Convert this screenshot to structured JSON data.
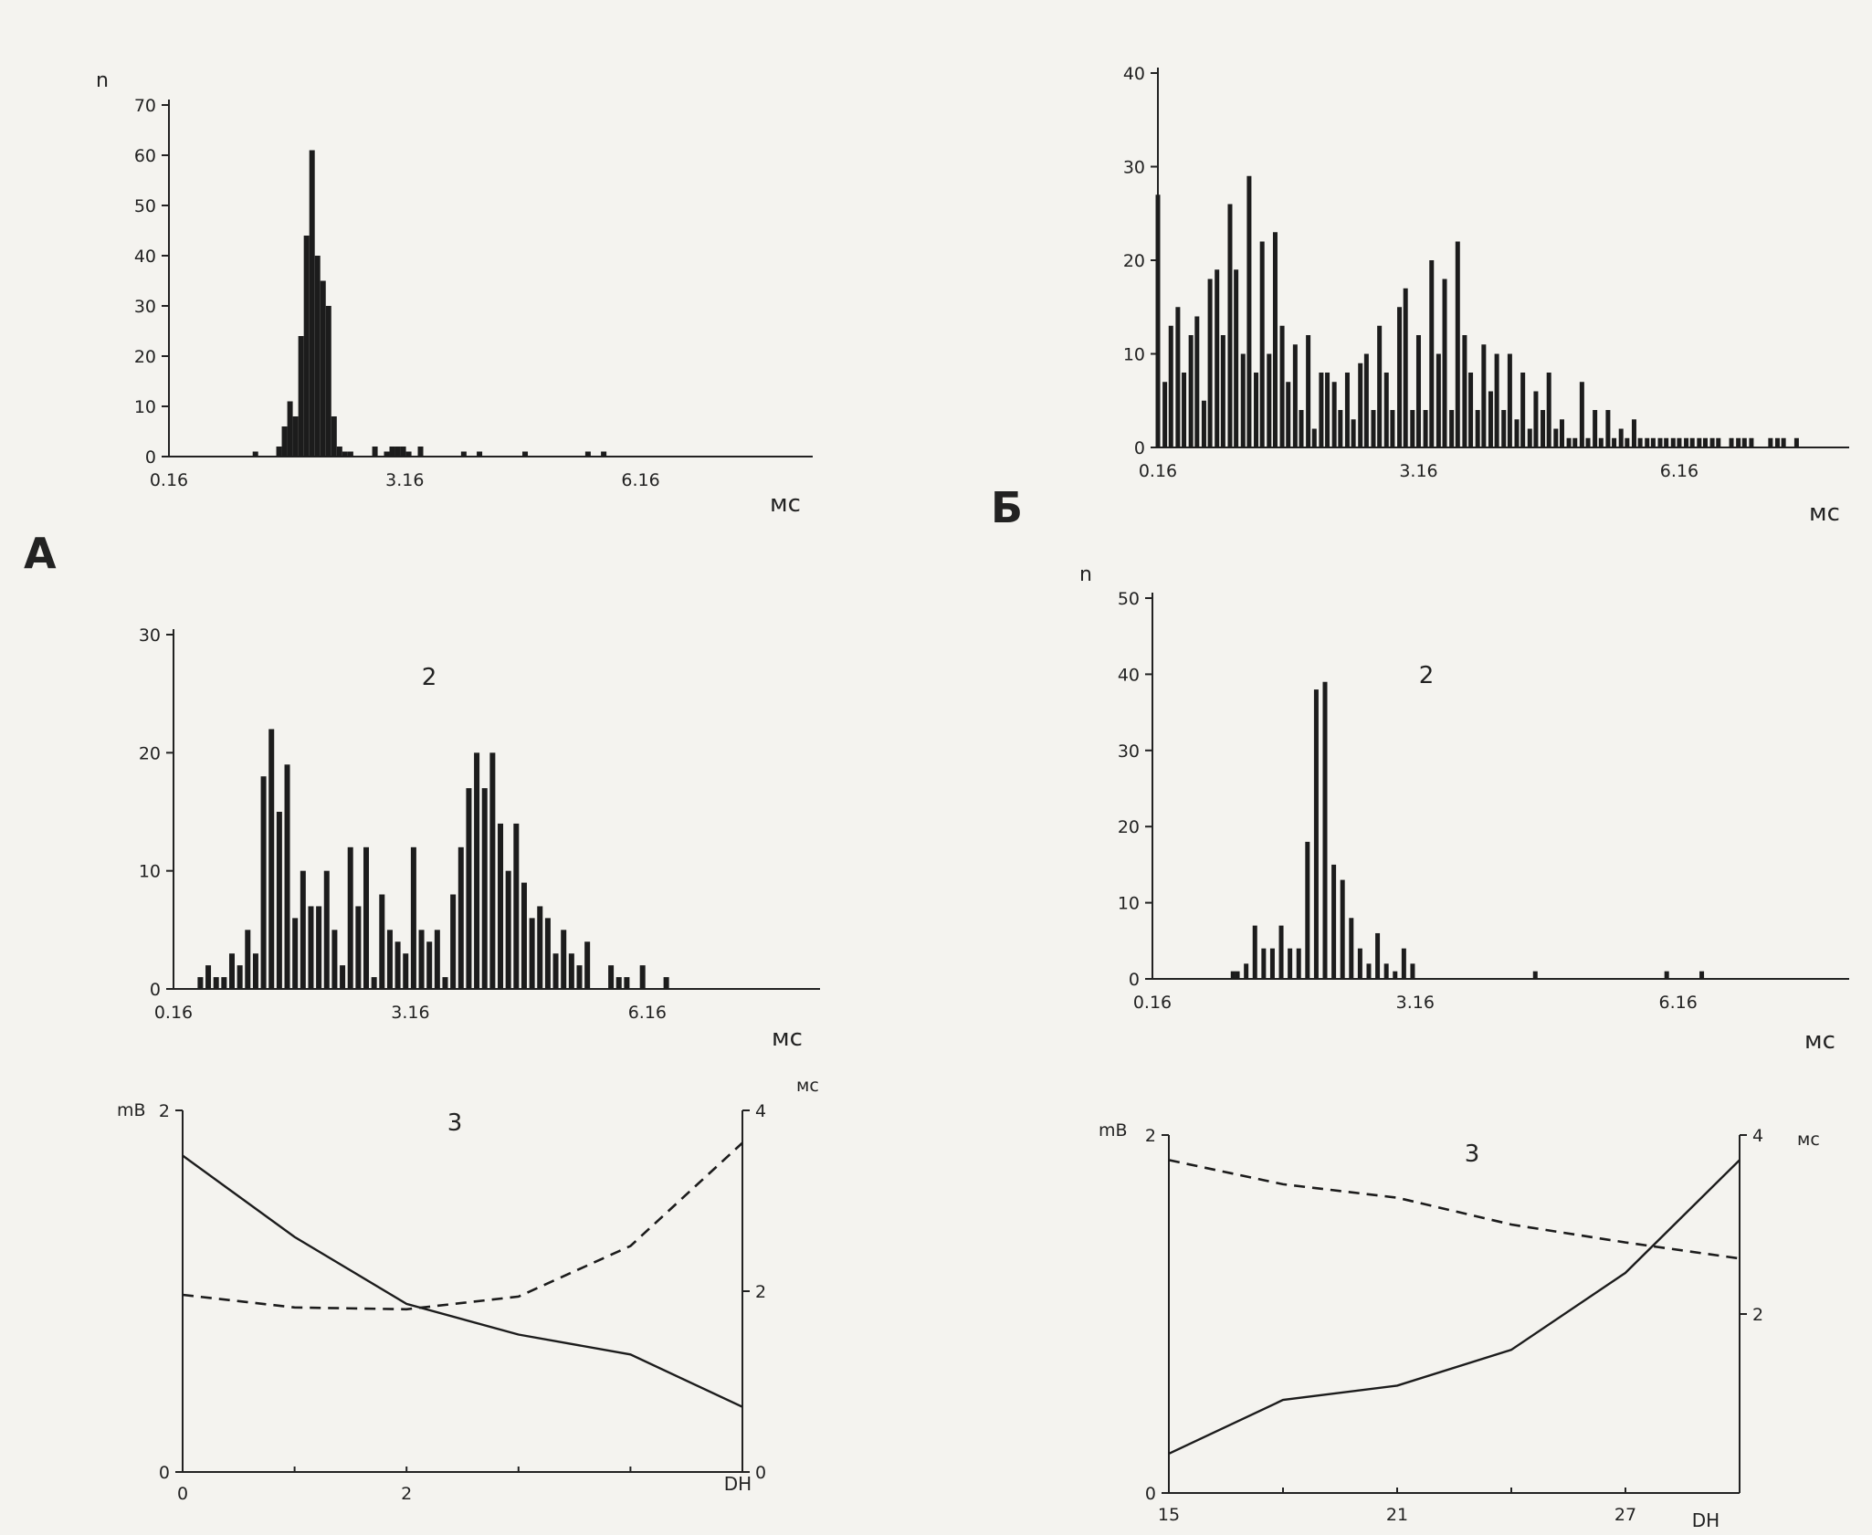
{
  "panel_labels": {
    "left": "А",
    "right": "Б"
  },
  "chart_data": [
    {
      "type": "bar",
      "panel": "A1",
      "ylabel": "n",
      "xlabel": "мс",
      "ylim": [
        0,
        70
      ],
      "xlim": [
        0.16,
        8.0
      ],
      "yticks": [
        0,
        10,
        20,
        30,
        40,
        50,
        60,
        70
      ],
      "xticks": [
        "0.16",
        "3.16",
        "6.16"
      ],
      "x": [
        1.26,
        1.56,
        1.63,
        1.7,
        1.77,
        1.84,
        1.91,
        1.98,
        2.05,
        2.12,
        2.19,
        2.26,
        2.33,
        2.4,
        2.47,
        2.78,
        2.93,
        3.0,
        3.07,
        3.14,
        3.21,
        3.36,
        3.91,
        4.11,
        4.69,
        5.49,
        5.69
      ],
      "values": [
        1,
        2,
        6,
        11,
        8,
        24,
        44,
        61,
        40,
        35,
        30,
        8,
        2,
        1,
        1,
        2,
        1,
        2,
        2,
        2,
        1,
        2,
        1,
        1,
        1,
        1,
        1
      ]
    },
    {
      "type": "bar",
      "panel": "A2",
      "title": "2",
      "xlabel": "мс",
      "ylim": [
        0,
        30
      ],
      "xlim": [
        0.16,
        8.0
      ],
      "yticks": [
        0,
        10,
        20,
        30
      ],
      "xticks": [
        "0.16",
        "3.16",
        "6.16"
      ],
      "x": [
        0.5,
        0.6,
        0.7,
        0.8,
        0.9,
        1.0,
        1.1,
        1.2,
        1.3,
        1.4,
        1.5,
        1.6,
        1.7,
        1.8,
        1.9,
        2.0,
        2.1,
        2.2,
        2.3,
        2.4,
        2.5,
        2.6,
        2.7,
        2.8,
        2.9,
        3.0,
        3.1,
        3.2,
        3.3,
        3.4,
        3.5,
        3.6,
        3.7,
        3.8,
        3.9,
        4.0,
        4.1,
        4.2,
        4.3,
        4.4,
        4.5,
        4.6,
        4.7,
        4.8,
        4.9,
        5.0,
        5.1,
        5.2,
        5.3,
        5.4,
        5.7,
        5.8,
        5.9,
        6.1,
        6.4
      ],
      "values": [
        1,
        2,
        1,
        1,
        3,
        2,
        5,
        3,
        18,
        22,
        15,
        19,
        6,
        10,
        7,
        7,
        10,
        5,
        2,
        12,
        7,
        12,
        1,
        8,
        5,
        4,
        3,
        12,
        5,
        4,
        5,
        1,
        8,
        12,
        17,
        20,
        17,
        20,
        14,
        10,
        14,
        9,
        6,
        7,
        6,
        3,
        5,
        3,
        2,
        4,
        2,
        1,
        1,
        2,
        1
      ]
    },
    {
      "type": "line",
      "panel": "A3",
      "title": "3",
      "xlabel": "DH",
      "ylabel_left": "mB",
      "ylabel_right": "мс",
      "xlim": [
        0,
        5
      ],
      "ylim_left": [
        0,
        2
      ],
      "ylim_right": [
        0,
        4
      ],
      "xticks": [
        "0",
        "2"
      ],
      "yticks_left": [
        "0",
        "2"
      ],
      "yticks_right": [
        "0",
        "2",
        "4"
      ],
      "series": [
        {
          "style": "solid",
          "axis": "left",
          "x": [
            0,
            1,
            2,
            3,
            4,
            5
          ],
          "y": [
            1.75,
            1.3,
            0.93,
            0.76,
            0.65,
            0.36
          ]
        },
        {
          "style": "dashed",
          "axis": "right",
          "x": [
            0,
            1,
            2,
            3,
            4,
            5
          ],
          "y": [
            1.96,
            1.82,
            1.8,
            1.94,
            2.5,
            3.64
          ]
        }
      ]
    },
    {
      "type": "bar",
      "panel": "B1",
      "xlabel": "мс",
      "ylim": [
        0,
        40
      ],
      "xlim": [
        0.16,
        7.8
      ],
      "yticks": [
        0,
        10,
        20,
        30,
        40
      ],
      "xticks": [
        "0.16",
        "3.16",
        "6.16"
      ],
      "x": [
        0.16,
        0.24,
        0.31,
        0.39,
        0.46,
        0.54,
        0.61,
        0.69,
        0.76,
        0.84,
        0.91,
        0.99,
        1.06,
        1.14,
        1.21,
        1.29,
        1.36,
        1.44,
        1.51,
        1.59,
        1.66,
        1.74,
        1.81,
        1.89,
        1.96,
        2.04,
        2.11,
        2.19,
        2.26,
        2.34,
        2.41,
        2.49,
        2.56,
        2.64,
        2.71,
        2.79,
        2.86,
        2.94,
        3.01,
        3.09,
        3.16,
        3.24,
        3.31,
        3.39,
        3.46,
        3.54,
        3.61,
        3.69,
        3.76,
        3.84,
        3.91,
        3.99,
        4.06,
        4.14,
        4.21,
        4.29,
        4.36,
        4.44,
        4.51,
        4.59,
        4.66,
        4.74,
        4.81,
        4.89,
        4.96,
        5.04,
        5.11,
        5.19,
        5.26,
        5.34,
        5.41,
        5.49,
        5.56,
        5.64,
        5.71,
        5.79,
        5.86,
        5.94,
        6.01,
        6.09,
        6.16,
        6.24,
        6.31,
        6.39,
        6.46,
        6.54,
        6.61,
        6.76,
        6.84,
        6.91,
        6.99,
        7.21,
        7.29,
        7.36,
        7.51
      ],
      "values": [
        27,
        7,
        13,
        15,
        8,
        12,
        14,
        5,
        18,
        19,
        12,
        26,
        19,
        10,
        29,
        8,
        22,
        10,
        23,
        13,
        7,
        11,
        4,
        12,
        2,
        8,
        8,
        7,
        4,
        8,
        3,
        9,
        10,
        4,
        13,
        8,
        4,
        15,
        17,
        4,
        12,
        4,
        20,
        10,
        18,
        4,
        22,
        12,
        8,
        4,
        11,
        6,
        10,
        4,
        10,
        3,
        8,
        2,
        6,
        4,
        8,
        2,
        3,
        1,
        1,
        7,
        1,
        4,
        1,
        4,
        1,
        2,
        1,
        3,
        1,
        1,
        1,
        1,
        1,
        1,
        1,
        1,
        1,
        1,
        1,
        1,
        1,
        1,
        1,
        1,
        1,
        1,
        1,
        1,
        1
      ]
    },
    {
      "type": "bar",
      "panel": "B2",
      "title": "2",
      "ylabel": "n",
      "xlabel": "мс",
      "ylim": [
        0,
        50
      ],
      "xlim": [
        0.16,
        7.8
      ],
      "yticks": [
        0,
        10,
        20,
        30,
        40,
        50
      ],
      "xticks": [
        "0.16",
        "3.16",
        "6.16"
      ],
      "x": [
        1.08,
        1.13,
        1.23,
        1.33,
        1.43,
        1.53,
        1.63,
        1.73,
        1.83,
        1.93,
        2.03,
        2.13,
        2.23,
        2.33,
        2.43,
        2.53,
        2.63,
        2.73,
        2.83,
        2.93,
        3.03,
        3.13,
        4.53,
        6.03,
        6.43
      ],
      "values": [
        1,
        1,
        2,
        7,
        4,
        4,
        7,
        4,
        4,
        18,
        38,
        39,
        15,
        13,
        8,
        4,
        2,
        6,
        2,
        1,
        4,
        2,
        1,
        1,
        1
      ]
    },
    {
      "type": "line",
      "panel": "B3",
      "title": "3",
      "xlabel": "DH",
      "ylabel_left": "mB",
      "ylabel_right": "мс",
      "xlim": [
        15,
        30
      ],
      "ylim_left": [
        0,
        2
      ],
      "ylim_right": [
        0,
        4
      ],
      "xticks": [
        "15",
        "21",
        "27"
      ],
      "yticks_left": [
        "0",
        "2"
      ],
      "yticks_right": [
        "2",
        "4"
      ],
      "series": [
        {
          "style": "solid",
          "axis": "left",
          "x": [
            15,
            18,
            21,
            24,
            27,
            30
          ],
          "y": [
            0.22,
            0.52,
            0.6,
            0.8,
            1.23,
            1.86
          ]
        },
        {
          "style": "dashed",
          "axis": "right",
          "x": [
            15,
            18,
            21,
            24,
            27,
            30
          ],
          "y": [
            3.72,
            3.45,
            3.3,
            3.0,
            2.8,
            2.62
          ]
        }
      ]
    }
  ]
}
